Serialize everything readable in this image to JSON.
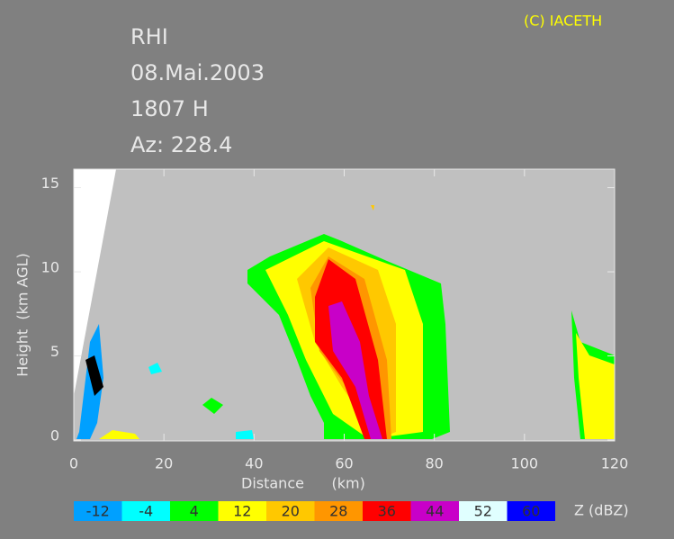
{
  "chart_data": {
    "type": "rhi",
    "title_lines": [
      "RHI",
      "08.Mai.2003",
      "1807 H",
      "Az: 228.4"
    ],
    "copyright": "(C) IACETH",
    "xlabel": "Distance      (km)",
    "ylabel": "Height  (km AGL)",
    "xlim": [
      0,
      120
    ],
    "xticks": [
      0,
      20,
      40,
      60,
      80,
      100,
      120
    ],
    "ylim": [
      0,
      16.1
    ],
    "yticks": [
      0,
      5,
      10,
      15
    ],
    "colorbar": {
      "label": "Z (dBZ)",
      "ticks": [
        -12,
        -4,
        4,
        12,
        20,
        28,
        36,
        44,
        52,
        60
      ],
      "colors": [
        "#00a0ff",
        "#00ffff",
        "#00ff00",
        "#ffff00",
        "#ffc800",
        "#ff9600",
        "#ff0000",
        "#c800c8",
        "#e0ffff",
        "#0000ff"
      ]
    }
  }
}
